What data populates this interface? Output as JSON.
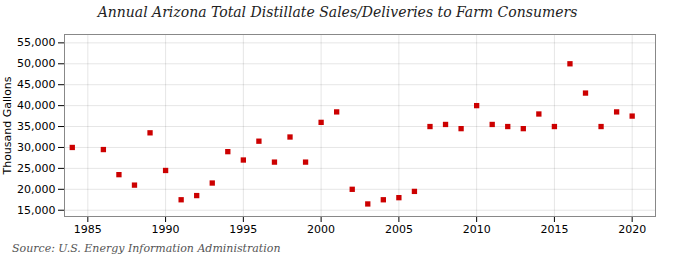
{
  "chart_data": {
    "type": "scatter",
    "title": "Annual Arizona Total Distillate Sales/Deliveries to Farm Consumers",
    "ylabel": "Thousand Gallons",
    "caption": "Source: U.S. Energy Information Administration",
    "x": [
      1984,
      1986,
      1987,
      1988,
      1989,
      1990,
      1991,
      1992,
      1993,
      1994,
      1995,
      1996,
      1997,
      1998,
      1999,
      2000,
      2001,
      2002,
      2003,
      2004,
      2005,
      2006,
      2007,
      2008,
      2009,
      2010,
      2011,
      2012,
      2013,
      2014,
      2015,
      2016,
      2017,
      2018,
      2019,
      2020
    ],
    "values": [
      30000,
      29500,
      23500,
      21000,
      33500,
      24500,
      17500,
      18500,
      21500,
      29000,
      27000,
      31500,
      26500,
      32500,
      26500,
      36000,
      38500,
      20000,
      16500,
      17500,
      18000,
      19500,
      35000,
      35500,
      34500,
      40000,
      35500,
      35000,
      34500,
      38000,
      35000,
      50000,
      43000,
      35000,
      38500,
      37500
    ],
    "color": "#cc0000",
    "marker": "square",
    "xlim": [
      1983.5,
      2021.5
    ],
    "ylim": [
      13500,
      57000
    ],
    "xticks": [
      1985,
      1990,
      1995,
      2000,
      2005,
      2010,
      2015,
      2020
    ],
    "yticks": [
      {
        "value": 15000,
        "label": "15,000"
      },
      {
        "value": 20000,
        "label": "20,000"
      },
      {
        "value": 25000,
        "label": "25,000"
      },
      {
        "value": 30000,
        "label": "30,000"
      },
      {
        "value": 35000,
        "label": "35,000"
      },
      {
        "value": 40000,
        "label": "40,000"
      },
      {
        "value": 45000,
        "label": "45,000"
      },
      {
        "value": 50000,
        "label": "50,000"
      },
      {
        "value": 55000,
        "label": "55,000"
      }
    ],
    "grid": true
  }
}
